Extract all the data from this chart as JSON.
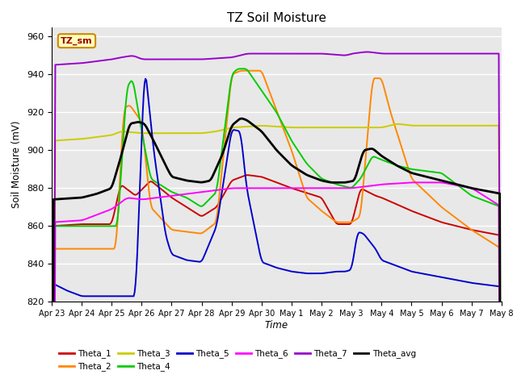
{
  "title": "TZ Soil Moisture",
  "ylabel": "Soil Moisture (mV)",
  "xlabel": "Time",
  "ylim": [
    820,
    965
  ],
  "yticks": [
    820,
    840,
    860,
    880,
    900,
    920,
    940,
    960
  ],
  "outer_bg": "#ffffff",
  "plot_bg_color": "#e8e8e8",
  "legend_label": "TZ_sm",
  "series_colors": {
    "Theta_1": "#cc0000",
    "Theta_2": "#ff8800",
    "Theta_3": "#cccc00",
    "Theta_4": "#00cc00",
    "Theta_5": "#0000cc",
    "Theta_6": "#ff00ff",
    "Theta_7": "#9900cc",
    "Theta_avg": "#000000"
  },
  "x_tick_labels": [
    "Apr 23",
    "Apr 24",
    "Apr 25",
    "Apr 26",
    "Apr 27",
    "Apr 28",
    "Apr 29",
    "Apr 30",
    "May 1",
    "May 2",
    "May 3",
    "May 4",
    "May 5",
    "May 6",
    "May 7",
    "May 8"
  ],
  "n_points": 500
}
